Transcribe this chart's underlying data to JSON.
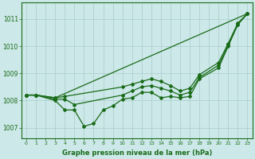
{
  "background_color": "#cce8e8",
  "grid_color": "#aacccc",
  "line_color": "#1a6b1a",
  "xlabel": "Graphe pression niveau de la mer (hPa)",
  "ylim": [
    1006.6,
    1011.6
  ],
  "xlim": [
    -0.5,
    23.5
  ],
  "yticks": [
    1007,
    1008,
    1009,
    1010,
    1011
  ],
  "xticks": [
    0,
    1,
    2,
    3,
    4,
    5,
    6,
    7,
    8,
    9,
    10,
    11,
    12,
    13,
    14,
    15,
    16,
    17,
    18,
    19,
    20,
    21,
    22,
    23
  ],
  "line1_x": [
    0,
    1,
    3,
    4,
    5,
    6,
    7,
    8,
    9,
    10,
    11,
    12,
    13,
    14,
    15,
    16,
    17,
    18,
    20,
    21,
    22,
    23
  ],
  "line1_y": [
    1008.2,
    1008.2,
    1008.0,
    1007.65,
    1007.65,
    1007.05,
    1007.15,
    1007.65,
    1007.8,
    1008.05,
    1008.1,
    1008.3,
    1008.3,
    1008.1,
    1008.15,
    1008.1,
    1008.15,
    1008.8,
    1009.2,
    1010.0,
    1010.8,
    1011.2
  ],
  "line2_x": [
    0,
    1,
    3,
    4,
    5,
    10,
    11,
    12,
    13,
    14,
    15,
    16,
    17,
    18,
    20,
    21,
    22,
    23
  ],
  "line2_y": [
    1008.2,
    1008.2,
    1008.05,
    1008.05,
    1007.85,
    1008.2,
    1008.35,
    1008.5,
    1008.55,
    1008.45,
    1008.35,
    1008.2,
    1008.3,
    1008.85,
    1009.3,
    1010.05,
    1010.8,
    1011.2
  ],
  "line3_x": [
    0,
    1,
    3,
    4,
    10,
    11,
    12,
    13,
    14,
    15,
    16,
    17,
    18,
    20,
    21,
    22,
    23
  ],
  "line3_y": [
    1008.2,
    1008.2,
    1008.1,
    1008.15,
    1008.5,
    1008.6,
    1008.7,
    1008.8,
    1008.7,
    1008.55,
    1008.35,
    1008.45,
    1008.95,
    1009.4,
    1010.1,
    1010.85,
    1011.2
  ],
  "line4_x": [
    0,
    1,
    3,
    23
  ],
  "line4_y": [
    1008.2,
    1008.2,
    1008.1,
    1011.2
  ]
}
